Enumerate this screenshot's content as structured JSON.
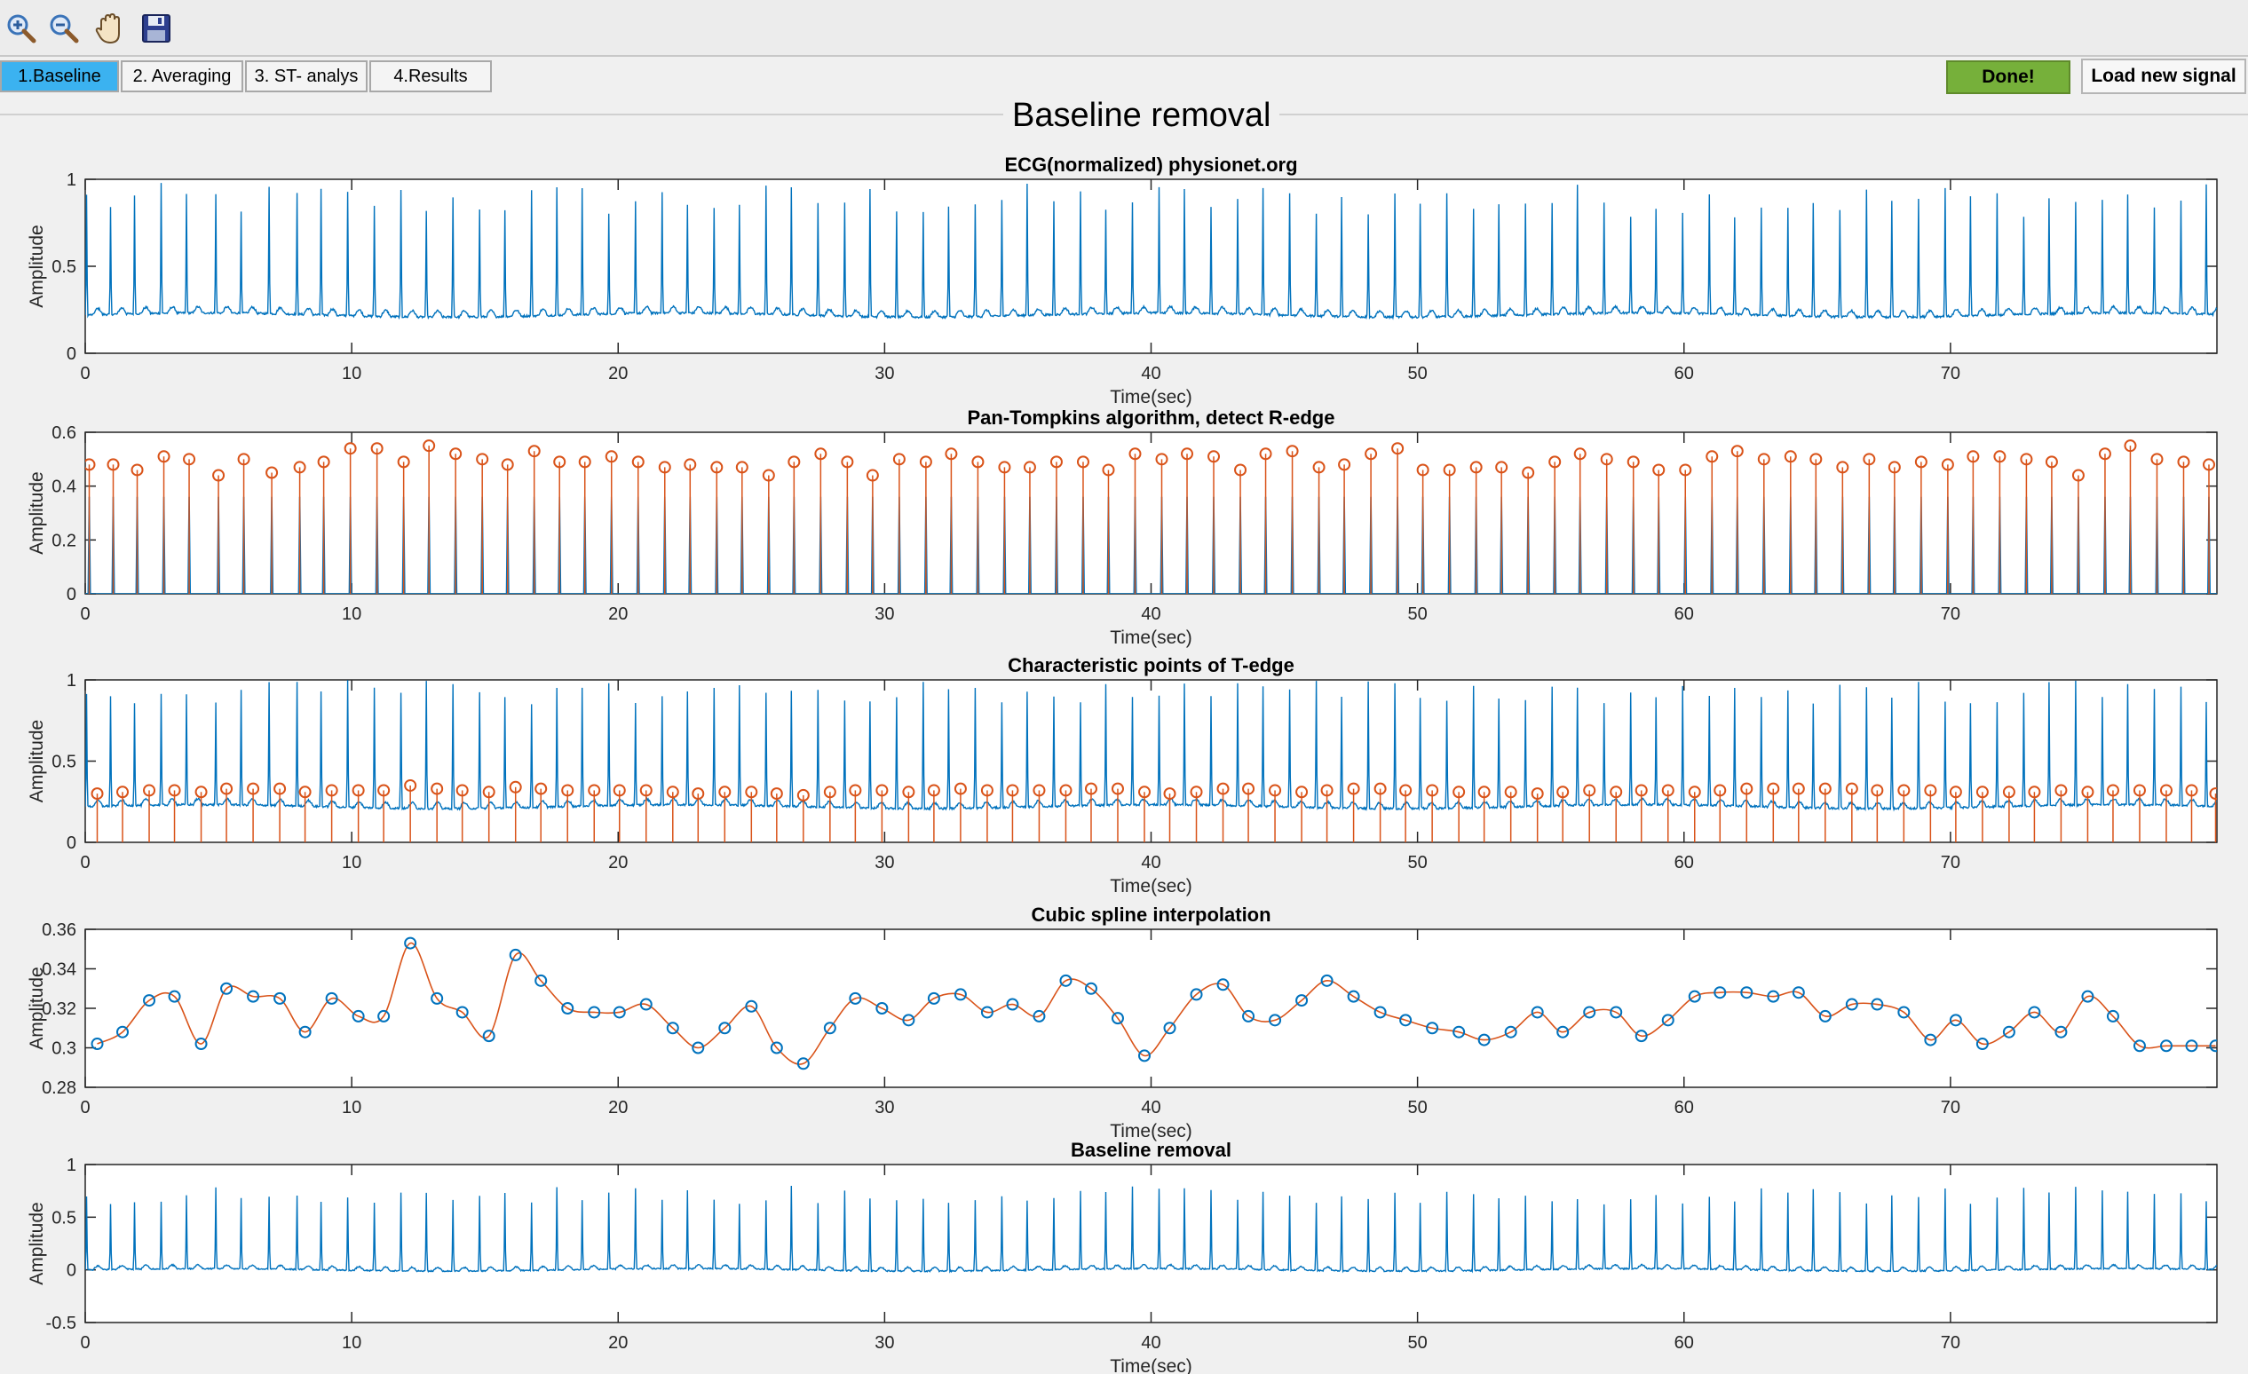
{
  "toolbar": {
    "icons": [
      "zoom-in-icon",
      "zoom-out-icon",
      "pan-hand-icon",
      "save-disk-icon"
    ]
  },
  "tabs": [
    {
      "label": "1.Baseline",
      "active": true
    },
    {
      "label": "2. Averaging",
      "active": false
    },
    {
      "label": "3. ST- analys",
      "active": false
    },
    {
      "label": "4.Results",
      "active": false
    }
  ],
  "buttons": {
    "done": "Done!",
    "load": "Load new signal"
  },
  "panel": {
    "title": "Baseline removal"
  },
  "colors": {
    "signal": "#0072bd",
    "marker": "#d95319",
    "active_tab": "#3bb2f0",
    "done_button": "#76b03a"
  },
  "chart_data": [
    {
      "type": "line",
      "title": "ECG(normalized) physionet.org",
      "xlabel": "Time(sec)",
      "ylabel": "Amplitude",
      "xlim": [
        0,
        80
      ],
      "ylim": [
        0,
        1
      ],
      "xticks": [
        0,
        10,
        20,
        30,
        40,
        50,
        60,
        70
      ],
      "yticks": [
        0,
        0.5,
        1
      ],
      "ytick_labels": [
        "0",
        "0.5",
        "1"
      ],
      "series": [
        {
          "kind": "ecg",
          "baseline": 0.22,
          "r_peak_min": 0.78,
          "r_peak_max": 0.98
        }
      ]
    },
    {
      "type": "line",
      "title": "Pan-Tompkins algorithm, detect R-edge",
      "xlabel": "Time(sec)",
      "ylabel": "Amplitude",
      "xlim": [
        0,
        80
      ],
      "ylim": [
        0,
        0.6
      ],
      "xticks": [
        0,
        10,
        20,
        30,
        40,
        50,
        60,
        70
      ],
      "yticks": [
        0,
        0.2,
        0.4,
        0.6
      ],
      "ytick_labels": [
        "0",
        "0.2",
        "0.4",
        "0.6"
      ],
      "series": [
        {
          "kind": "pulse",
          "color": "signal"
        },
        {
          "kind": "stem-markers",
          "color": "marker"
        }
      ],
      "markers": {
        "x": [
          0.15,
          1.05,
          1.95,
          2.95,
          3.9,
          5.0,
          5.95,
          7.0,
          8.05,
          8.95,
          9.95,
          10.95,
          11.95,
          12.9,
          13.9,
          14.9,
          15.85,
          16.85,
          17.8,
          18.75,
          19.75,
          20.75,
          21.75,
          22.7,
          23.7,
          24.65,
          25.65,
          26.6,
          27.6,
          28.6,
          29.55,
          30.55,
          31.55,
          32.5,
          33.5,
          34.5,
          35.45,
          36.45,
          37.45,
          38.4,
          39.4,
          40.4,
          41.35,
          42.35,
          43.35,
          44.3,
          45.3,
          46.3,
          47.25,
          48.25,
          49.25,
          50.2,
          51.2,
          52.2,
          53.15,
          54.15,
          55.15,
          56.1,
          57.1,
          58.1,
          59.05,
          60.05,
          61.05,
          62.0,
          63.0,
          64.0,
          64.95,
          65.95,
          66.95,
          67.9,
          68.9,
          69.9,
          70.85,
          71.85,
          72.85,
          73.8,
          74.8,
          75.8,
          76.75,
          77.75,
          78.75,
          79.7
        ],
        "y": [
          0.48,
          0.48,
          0.46,
          0.51,
          0.5,
          0.44,
          0.5,
          0.45,
          0.47,
          0.49,
          0.54,
          0.54,
          0.49,
          0.55,
          0.52,
          0.5,
          0.48,
          0.53,
          0.49,
          0.49,
          0.51,
          0.49,
          0.47,
          0.48,
          0.47,
          0.47,
          0.44,
          0.49,
          0.52,
          0.49,
          0.44,
          0.5,
          0.49,
          0.52,
          0.49,
          0.47,
          0.47,
          0.49,
          0.49,
          0.46,
          0.52,
          0.5,
          0.52,
          0.51,
          0.46,
          0.52,
          0.53,
          0.47,
          0.48,
          0.52,
          0.54,
          0.46,
          0.46,
          0.47,
          0.47,
          0.45,
          0.49,
          0.52,
          0.5,
          0.49,
          0.46,
          0.46,
          0.51,
          0.53,
          0.5,
          0.51,
          0.5,
          0.47,
          0.5,
          0.47,
          0.49,
          0.48,
          0.51,
          0.51,
          0.5,
          0.49,
          0.44,
          0.52,
          0.55,
          0.5,
          0.49,
          0.48
        ]
      }
    },
    {
      "type": "line",
      "title": "Characteristic points of T-edge",
      "xlabel": "Time(sec)",
      "ylabel": "Amplitude",
      "xlim": [
        0,
        80
      ],
      "ylim": [
        0,
        1
      ],
      "xticks": [
        0,
        10,
        20,
        30,
        40,
        50,
        60,
        70
      ],
      "yticks": [
        0,
        0.5,
        1
      ],
      "ytick_labels": [
        "0",
        "0.5",
        "1"
      ],
      "series": [
        {
          "kind": "ecg",
          "baseline": 0.22,
          "color": "signal"
        },
        {
          "kind": "stem-markers",
          "color": "marker"
        }
      ],
      "markers": {
        "x": [
          0.45,
          1.4,
          2.4,
          3.35,
          4.35,
          5.3,
          6.3,
          7.3,
          8.25,
          9.25,
          10.25,
          11.2,
          12.2,
          13.2,
          14.15,
          15.15,
          16.15,
          17.1,
          18.1,
          19.1,
          20.05,
          21.05,
          22.05,
          23.0,
          24.0,
          25.0,
          25.95,
          26.95,
          27.95,
          28.9,
          29.9,
          30.9,
          31.85,
          32.85,
          33.85,
          34.8,
          35.8,
          36.8,
          37.75,
          38.75,
          39.75,
          40.7,
          41.7,
          42.7,
          43.65,
          44.65,
          45.65,
          46.6,
          47.6,
          48.6,
          49.55,
          50.55,
          51.55,
          52.5,
          53.5,
          54.5,
          55.45,
          56.45,
          57.45,
          58.4,
          59.4,
          60.4,
          61.35,
          62.35,
          63.35,
          64.3,
          65.3,
          66.3,
          67.25,
          68.25,
          69.25,
          70.2,
          71.2,
          72.2,
          73.15,
          74.15,
          75.15,
          76.1,
          77.1,
          78.1,
          79.05,
          79.95
        ],
        "y": [
          0.3,
          0.31,
          0.32,
          0.32,
          0.31,
          0.33,
          0.33,
          0.33,
          0.31,
          0.32,
          0.32,
          0.32,
          0.35,
          0.33,
          0.32,
          0.31,
          0.34,
          0.33,
          0.32,
          0.32,
          0.32,
          0.32,
          0.31,
          0.3,
          0.31,
          0.31,
          0.3,
          0.29,
          0.31,
          0.32,
          0.32,
          0.31,
          0.32,
          0.33,
          0.32,
          0.32,
          0.32,
          0.32,
          0.33,
          0.33,
          0.31,
          0.3,
          0.31,
          0.33,
          0.33,
          0.32,
          0.31,
          0.32,
          0.33,
          0.33,
          0.32,
          0.32,
          0.31,
          0.31,
          0.31,
          0.3,
          0.31,
          0.32,
          0.31,
          0.32,
          0.32,
          0.31,
          0.32,
          0.33,
          0.33,
          0.33,
          0.33,
          0.33,
          0.32,
          0.32,
          0.32,
          0.31,
          0.31,
          0.31,
          0.31,
          0.32,
          0.31,
          0.32,
          0.32,
          0.32,
          0.32,
          0.3
        ]
      }
    },
    {
      "type": "line",
      "title": "Cubic spline interpolation",
      "xlabel": "Time(sec)",
      "ylabel": "Amplitude",
      "xlim": [
        0,
        80
      ],
      "ylim": [
        0.28,
        0.36
      ],
      "xticks": [
        0,
        10,
        20,
        30,
        40,
        50,
        60,
        70
      ],
      "yticks": [
        0.28,
        0.3,
        0.32,
        0.34,
        0.36
      ],
      "ytick_labels": [
        "0.28",
        "0.3",
        "0.32",
        "0.34",
        "0.36"
      ],
      "series": [
        {
          "kind": "spline",
          "color": "marker"
        },
        {
          "kind": "circle-markers",
          "color": "signal"
        }
      ],
      "markers": {
        "x": [
          0.45,
          1.4,
          2.4,
          3.35,
          4.35,
          5.3,
          6.3,
          7.3,
          8.25,
          9.25,
          10.25,
          11.2,
          12.2,
          13.2,
          14.15,
          15.15,
          16.15,
          17.1,
          18.1,
          19.1,
          20.05,
          21.05,
          22.05,
          23.0,
          24.0,
          25.0,
          25.95,
          26.95,
          27.95,
          28.9,
          29.9,
          30.9,
          31.85,
          32.85,
          33.85,
          34.8,
          35.8,
          36.8,
          37.75,
          38.75,
          39.75,
          40.7,
          41.7,
          42.7,
          43.65,
          44.65,
          45.65,
          46.6,
          47.6,
          48.6,
          49.55,
          50.55,
          51.55,
          52.5,
          53.5,
          54.5,
          55.45,
          56.45,
          57.45,
          58.4,
          59.4,
          60.4,
          61.35,
          62.35,
          63.35,
          64.3,
          65.3,
          66.3,
          67.25,
          68.25,
          69.25,
          70.2,
          71.2,
          72.2,
          73.15,
          74.15,
          75.15,
          76.1,
          77.1,
          78.1,
          79.05,
          79.95
        ],
        "y": [
          0.302,
          0.308,
          0.324,
          0.326,
          0.302,
          0.33,
          0.326,
          0.325,
          0.308,
          0.325,
          0.316,
          0.316,
          0.353,
          0.325,
          0.318,
          0.306,
          0.347,
          0.334,
          0.32,
          0.318,
          0.318,
          0.322,
          0.31,
          0.3,
          0.31,
          0.321,
          0.3,
          0.292,
          0.31,
          0.325,
          0.32,
          0.314,
          0.325,
          0.327,
          0.318,
          0.322,
          0.316,
          0.334,
          0.33,
          0.315,
          0.296,
          0.31,
          0.327,
          0.332,
          0.316,
          0.314,
          0.324,
          0.334,
          0.326,
          0.318,
          0.314,
          0.31,
          0.308,
          0.304,
          0.308,
          0.318,
          0.308,
          0.318,
          0.318,
          0.306,
          0.314,
          0.326,
          0.328,
          0.328,
          0.326,
          0.328,
          0.316,
          0.322,
          0.322,
          0.318,
          0.304,
          0.314,
          0.302,
          0.308,
          0.318,
          0.308,
          0.326,
          0.316,
          0.301,
          0.301,
          0.301,
          0.301
        ]
      }
    },
    {
      "type": "line",
      "title": "Baseline removal",
      "xlabel": "Time(sec)",
      "ylabel": "Amplitude",
      "xlim": [
        0,
        80
      ],
      "ylim": [
        -0.5,
        1
      ],
      "xticks": [
        0,
        10,
        20,
        30,
        40,
        50,
        60,
        70
      ],
      "yticks": [
        -0.5,
        0,
        0.5,
        1
      ],
      "ytick_labels": [
        "-0.5",
        "0",
        "0.5",
        "1"
      ],
      "series": [
        {
          "kind": "ecg",
          "baseline": 0.0,
          "r_peak_min": 0.62,
          "r_peak_max": 0.8,
          "color": "signal"
        }
      ]
    }
  ]
}
